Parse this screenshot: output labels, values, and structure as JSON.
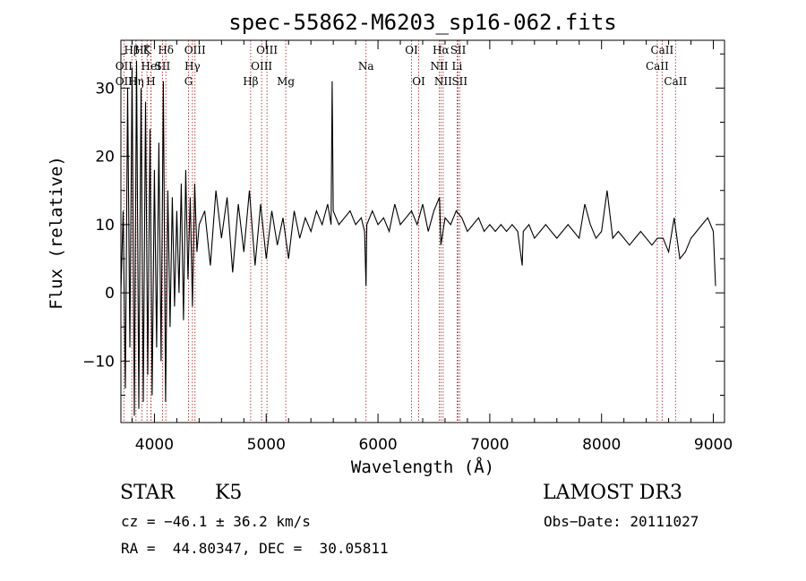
{
  "chart_data": {
    "type": "line",
    "title": "spec-55862-M6203_sp16-062.fits",
    "xlabel": "Wavelength (Å)",
    "ylabel": "Flux (relative)",
    "xlim": [
      3700,
      9100
    ],
    "ylim": [
      -19,
      37
    ],
    "xticks": [
      4000,
      5000,
      6000,
      7000,
      8000,
      9000
    ],
    "yticks": [
      -10,
      0,
      10,
      20,
      30
    ],
    "colors": {
      "spectrum": "#000000",
      "lines": "#b03030"
    },
    "spectral_lines": [
      {
        "label": "Hβ",
        "wave": 3798,
        "row": 0
      },
      {
        "label": "Hζ",
        "wave": 3889,
        "row": 0
      },
      {
        "label": "K",
        "wave": 3934,
        "row": 0
      },
      {
        "label": "Hδ",
        "wave": 4102,
        "row": 0
      },
      {
        "label": "OIII",
        "wave": 4363,
        "row": 0
      },
      {
        "label": "OIII",
        "wave": 5007,
        "row": 0
      },
      {
        "label": "OI",
        "wave": 6300,
        "row": 0
      },
      {
        "label": "Hα",
        "wave": 6563,
        "row": 0
      },
      {
        "label": "SII",
        "wave": 6717,
        "row": 0
      },
      {
        "label": "CaII",
        "wave": 8542,
        "row": 0
      },
      {
        "label": "OII",
        "wave": 3727,
        "row": 1
      },
      {
        "label": "HeI",
        "wave": 3970,
        "row": 1
      },
      {
        "label": "SII",
        "wave": 4072,
        "row": 1
      },
      {
        "label": "Hγ",
        "wave": 4340,
        "row": 1
      },
      {
        "label": "OIII",
        "wave": 4959,
        "row": 1
      },
      {
        "label": "Na",
        "wave": 5893,
        "row": 1
      },
      {
        "label": "NII",
        "wave": 6548,
        "row": 1
      },
      {
        "label": "Li",
        "wave": 6708,
        "row": 1
      },
      {
        "label": "CaII",
        "wave": 8498,
        "row": 1
      },
      {
        "label": "OII",
        "wave": 3727,
        "row": 2
      },
      {
        "label": "Hη",
        "wave": 3835,
        "row": 2
      },
      {
        "label": "H",
        "wave": 3968,
        "row": 2
      },
      {
        "label": "G",
        "wave": 4305,
        "row": 2
      },
      {
        "label": "Hβ",
        "wave": 4861,
        "row": 2
      },
      {
        "label": "Mg",
        "wave": 5175,
        "row": 2
      },
      {
        "label": "OI",
        "wave": 6364,
        "row": 2
      },
      {
        "label": "NII",
        "wave": 6583,
        "row": 2
      },
      {
        "label": "SII",
        "wave": 6731,
        "row": 2
      },
      {
        "label": "CaII",
        "wave": 8662,
        "row": 2
      }
    ],
    "spectrum": {
      "x": [
        3700,
        3720,
        3740,
        3760,
        3780,
        3800,
        3820,
        3840,
        3860,
        3880,
        3900,
        3920,
        3940,
        3960,
        3980,
        4000,
        4020,
        4040,
        4060,
        4080,
        4100,
        4120,
        4140,
        4160,
        4180,
        4200,
        4220,
        4240,
        4260,
        4280,
        4300,
        4320,
        4340,
        4360,
        4380,
        4400,
        4450,
        4500,
        4550,
        4600,
        4650,
        4700,
        4750,
        4800,
        4850,
        4900,
        4950,
        5000,
        5050,
        5100,
        5150,
        5200,
        5250,
        5300,
        5350,
        5400,
        5450,
        5500,
        5550,
        5580,
        5590,
        5600,
        5650,
        5700,
        5750,
        5800,
        5850,
        5880,
        5893,
        5900,
        5950,
        6000,
        6050,
        6100,
        6150,
        6200,
        6250,
        6300,
        6350,
        6400,
        6450,
        6500,
        6550,
        6563,
        6600,
        6650,
        6700,
        6750,
        6800,
        6850,
        6900,
        6950,
        7000,
        7050,
        7100,
        7150,
        7200,
        7250,
        7290,
        7300,
        7350,
        7400,
        7450,
        7500,
        7550,
        7600,
        7650,
        7700,
        7750,
        7800,
        7850,
        7900,
        7950,
        8000,
        8050,
        8100,
        8150,
        8200,
        8250,
        8300,
        8350,
        8400,
        8450,
        8500,
        8550,
        8600,
        8650,
        8700,
        8750,
        8800,
        8850,
        8900,
        8950,
        9000,
        9020
      ],
      "y": [
        0,
        12,
        -14,
        30,
        -8,
        33,
        -18,
        34,
        -17,
        30,
        -16,
        28,
        -12,
        24,
        -15,
        18,
        -8,
        22,
        -10,
        31,
        -16,
        15,
        -5,
        14,
        -2,
        12,
        0,
        16,
        -4,
        18,
        2,
        14,
        -2,
        16,
        6,
        10,
        12,
        4,
        15,
        8,
        14,
        3,
        13,
        6,
        15,
        4,
        13,
        5,
        12,
        7,
        11,
        5,
        12,
        8,
        11,
        9,
        12,
        10,
        13,
        10,
        31,
        12,
        10,
        11,
        12,
        10,
        11,
        9,
        1,
        10,
        12,
        10,
        11,
        9,
        13,
        10,
        11,
        12,
        10,
        13,
        9,
        12,
        14,
        7,
        11,
        10,
        12,
        11,
        9,
        10,
        11,
        9,
        10,
        9,
        10,
        9,
        10,
        9,
        4,
        9,
        10,
        8,
        9,
        10,
        9,
        8,
        9,
        10,
        9,
        8,
        13,
        10,
        8,
        9,
        15,
        8,
        9,
        8,
        7,
        8,
        9,
        8,
        7,
        8,
        8,
        6,
        11,
        5,
        6,
        8,
        9,
        10,
        11,
        9,
        1
      ]
    }
  },
  "info": {
    "class_label": "STAR",
    "subclass": "K5",
    "survey": "LAMOST DR3",
    "cz": "cz = −46.1 ± 36.2 km/s",
    "obs_date": "Obs−Date: 20111027",
    "coords": "RA =  44.80347, DEC =  30.05811"
  }
}
